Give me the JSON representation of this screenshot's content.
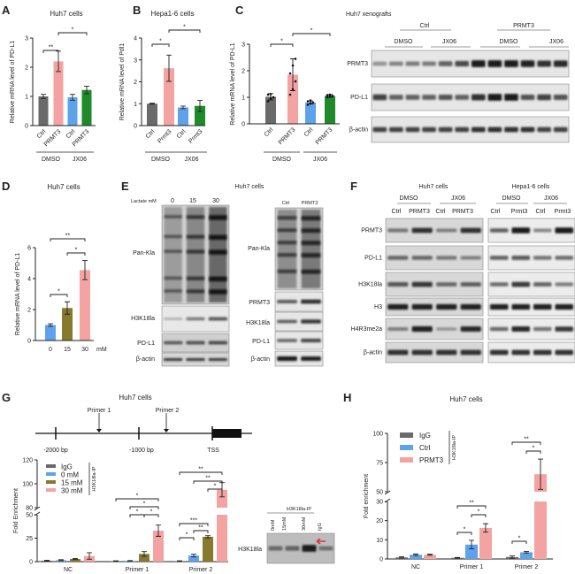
{
  "panel_letters": [
    "A",
    "B",
    "C",
    "D",
    "E",
    "F",
    "G",
    "H"
  ],
  "colors": {
    "gray": "#6a6a6a",
    "pink": "#f4a3a3",
    "blue": "#5ea2ea",
    "green": "#1f8a2a",
    "olive": "#877a2f",
    "band": "#1a1a1a",
    "arrow": "#e0303a"
  },
  "chart_data": [
    {
      "id": "A",
      "type": "bar",
      "title": "Huh7 cells",
      "ylabel": "Relative mRNA  level of PD-L1",
      "ylim": [
        0,
        3
      ],
      "yticks": [
        0,
        1,
        2,
        3
      ],
      "categories": [
        "Ctrl",
        "PRMT3",
        "Ctrl",
        "PRMT3"
      ],
      "groups": [
        {
          "label": "DMSO",
          "bars": [
            0,
            1
          ]
        },
        {
          "label": "JX06",
          "bars": [
            2,
            3
          ]
        }
      ],
      "values": [
        1.0,
        2.2,
        0.97,
        1.22
      ],
      "errors": [
        0.07,
        0.35,
        0.1,
        0.13
      ],
      "bar_colors": [
        "gray",
        "pink",
        "blue",
        "green"
      ],
      "significance": [
        {
          "from": 0,
          "to": 1,
          "label": "**"
        },
        {
          "from": 1,
          "to": 3,
          "label": "*"
        }
      ]
    },
    {
      "id": "B",
      "type": "bar",
      "title": "Hepa1-6 cells",
      "ylabel": "Relative mRNA  level of Pdl1",
      "ylim": [
        0,
        4
      ],
      "yticks": [
        0,
        1,
        2,
        3,
        4
      ],
      "categories": [
        "Ctrl",
        "Prmt3",
        "Ctrl",
        "Prmt3"
      ],
      "groups": [
        {
          "label": "DMSO",
          "bars": [
            0,
            1
          ]
        },
        {
          "label": "JX06",
          "bars": [
            2,
            3
          ]
        }
      ],
      "values": [
        1.0,
        2.62,
        0.83,
        0.9
      ],
      "errors": [
        0.02,
        0.6,
        0.06,
        0.25
      ],
      "bar_colors": [
        "gray",
        "pink",
        "blue",
        "green"
      ],
      "significance": [
        {
          "from": 0,
          "to": 1,
          "label": "*"
        },
        {
          "from": 1,
          "to": 3,
          "label": "*"
        }
      ]
    },
    {
      "id": "C",
      "type": "bar",
      "title": "",
      "ylabel": "Relative mRNA  level of PD-L1",
      "ylim": [
        0,
        3
      ],
      "yticks": [
        0,
        1,
        2,
        3
      ],
      "categories": [
        "Ctrl",
        "PRMT3",
        "Ctrl",
        "PRMT3"
      ],
      "groups": [
        {
          "label": "DMSO",
          "bars": [
            0,
            1
          ]
        },
        {
          "label": "JX06",
          "bars": [
            2,
            3
          ]
        }
      ],
      "values": [
        1.02,
        1.85,
        0.8,
        1.05
      ],
      "errors": [
        0.12,
        0.6,
        0.06,
        0.05
      ],
      "bar_colors": [
        "gray",
        "pink",
        "blue",
        "green"
      ],
      "points": [
        [
          0.85,
          0.95,
          1.0,
          1.1,
          1.12
        ],
        [
          1.1,
          1.3,
          1.6,
          1.9,
          2.2,
          2.45
        ],
        [
          0.72,
          0.78,
          0.8,
          0.85,
          0.88
        ],
        [
          1.0,
          1.03,
          1.05,
          1.08,
          1.1
        ]
      ],
      "significance": [
        {
          "from": 0,
          "to": 1,
          "label": "*"
        },
        {
          "from": 1,
          "to": 3,
          "label": "*"
        }
      ]
    },
    {
      "id": "D",
      "type": "bar",
      "title": "Huh7 cells",
      "ylabel": "Relative mRNA  level of PD-L1",
      "ylim": [
        0,
        6
      ],
      "yticks": [
        0,
        2,
        4,
        6
      ],
      "categories": [
        "0",
        "15",
        "30"
      ],
      "x_unit": "mM",
      "values": [
        1.0,
        2.1,
        4.55
      ],
      "errors": [
        0.08,
        0.4,
        0.62
      ],
      "bar_colors": [
        "blue",
        "olive",
        "pink"
      ],
      "significance": [
        {
          "from": 0,
          "to": 1,
          "label": "*"
        },
        {
          "from": 1,
          "to": 2,
          "label": "*"
        },
        {
          "from": 0,
          "to": 2,
          "label": "**"
        }
      ]
    },
    {
      "id": "G",
      "type": "bar",
      "ylabel": "Fold Enrichment",
      "yticks": [
        0,
        25,
        50,
        80,
        100,
        120
      ],
      "axis_break": [
        50,
        80
      ],
      "ylim": [
        0,
        120
      ],
      "categories": [
        "NC",
        "Primer 1",
        "Primer 2"
      ],
      "legend_group_label": "H3K18la-IP",
      "legend": "top-left",
      "series": [
        {
          "name": "IgG",
          "color": "gray",
          "values": [
            1.0,
            0.6,
            0.6
          ],
          "errors": [
            0.5,
            0.3,
            0.3
          ]
        },
        {
          "name": "0 mM",
          "color": "blue",
          "values": [
            1.5,
            0.8,
            6.5
          ],
          "errors": [
            0.5,
            0.3,
            1.5
          ]
        },
        {
          "name": "15 mM",
          "color": "olive",
          "values": [
            2.8,
            8.2,
            26.5
          ],
          "errors": [
            0.6,
            2.5,
            1.2
          ]
        },
        {
          "name": "30 mM",
          "color": "pink",
          "values": [
            6.0,
            33,
            95
          ],
          "errors": [
            3.5,
            6,
            6
          ]
        }
      ],
      "significance": [
        {
          "group": 1,
          "from": 1,
          "to": 2,
          "label": "*",
          "level": 0
        },
        {
          "group": 1,
          "from": 2,
          "to": 3,
          "label": "*",
          "level": 0
        },
        {
          "group": 1,
          "from": 1,
          "to": 3,
          "label": "*",
          "level": 1
        },
        {
          "group": 1,
          "from": 0,
          "to": 3,
          "label": "*",
          "level": 2
        },
        {
          "group": 2,
          "from": 0,
          "to": 1,
          "label": "*",
          "level": 0
        },
        {
          "group": 2,
          "from": 1,
          "to": 2,
          "label": "**",
          "level": 1
        },
        {
          "group": 2,
          "from": 0,
          "to": 2,
          "label": "***",
          "level": 2
        },
        {
          "group": 2,
          "from": 2,
          "to": 3,
          "label": "*",
          "level": 3
        },
        {
          "group": 2,
          "from": 1,
          "to": 3,
          "label": "**",
          "level": 4
        },
        {
          "group": 2,
          "from": 0,
          "to": 3,
          "label": "**",
          "level": 5
        }
      ]
    },
    {
      "id": "H",
      "type": "bar",
      "title": "Huh7 cells",
      "ylabel": "Fold enrichment",
      "yticks": [
        0,
        10,
        20,
        30,
        50,
        75,
        100
      ],
      "axis_break": [
        30,
        50
      ],
      "ylim": [
        0,
        100
      ],
      "categories": [
        "NC",
        "Primer 1",
        "Primer 2"
      ],
      "legend_group_label": "H3K18la-IP",
      "legend": "top-left",
      "series": [
        {
          "name": "IgG",
          "color": "gray",
          "values": [
            0.8,
            0.6,
            1.0
          ],
          "errors": [
            0.3,
            0.2,
            0.6
          ]
        },
        {
          "name": "Ctrl",
          "color": "blue",
          "values": [
            2.2,
            7.5,
            3.5
          ],
          "errors": [
            0.4,
            2.2,
            0.4
          ]
        },
        {
          "name": "PRMT3",
          "color": "pink",
          "values": [
            2.2,
            16.2,
            65
          ],
          "errors": [
            0.3,
            2.2,
            13
          ]
        }
      ],
      "significance": [
        {
          "group": 1,
          "from": 0,
          "to": 1,
          "label": "*",
          "level": 0
        },
        {
          "group": 1,
          "from": 1,
          "to": 2,
          "label": "*",
          "level": 1
        },
        {
          "group": 1,
          "from": 0,
          "to": 2,
          "label": "**",
          "level": 2
        },
        {
          "group": 2,
          "from": 0,
          "to": 1,
          "label": "*",
          "level": 0
        },
        {
          "group": 2,
          "from": 1,
          "to": 2,
          "label": "*",
          "level": 1
        },
        {
          "group": 2,
          "from": 0,
          "to": 2,
          "label": "**",
          "level": 2
        }
      ]
    }
  ],
  "blots": {
    "C": {
      "title": "Huh7 xenografts",
      "groups": [
        "Ctrl",
        "PRMT3"
      ],
      "subgroups": [
        "DMSO",
        "JX06",
        "DMSO",
        "JX06"
      ],
      "rows": [
        "PRMT3",
        "PD-L1",
        "β-actin"
      ]
    },
    "E_left": {
      "title": "Huh7 cells",
      "lane_header": "Lactate mM",
      "lanes": [
        "0",
        "15",
        "30"
      ],
      "rows": [
        "Pan-Kla",
        "H3K18la",
        "PD-L1",
        "β-actin"
      ]
    },
    "E_right": {
      "lanes": [
        "Ctrl",
        "PRMT3"
      ],
      "rows": [
        "Pan-Kla",
        "PRMT3",
        "H3K18la",
        "PD-L1",
        "β-actin"
      ]
    },
    "F": {
      "titles": [
        "Huh7 cells",
        "Hepa1-6 cells"
      ],
      "treatments": [
        "DMSO",
        "JX06",
        "DMSO",
        "JX06"
      ],
      "lanes": [
        "Ctrl",
        "PRMT3",
        "Ctrl",
        "PRMT3",
        "Ctrl",
        "Prmt3",
        "Ctrl",
        "Prmt3"
      ],
      "rows": [
        "PRMT3",
        "PD-L1",
        "H3K18la",
        "H3",
        "H4R3me2a",
        "β-actin"
      ]
    },
    "G": {
      "header": "H3K18la-IP",
      "lanes": [
        "0mM",
        "15mM",
        "30mM",
        "IgG"
      ],
      "row": "H3K18la"
    }
  },
  "diagram": {
    "title": "Huh7 cells",
    "primers": [
      "Primer 1",
      "Primer 2"
    ],
    "positions": [
      "-2000 bp",
      "-1000 bp",
      "TSS"
    ]
  }
}
